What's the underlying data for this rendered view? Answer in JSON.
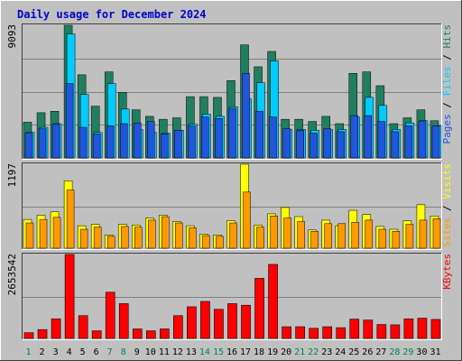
{
  "chart_data": {
    "type": "bar",
    "title": "Daily usage for December 2024",
    "categories": [
      "1",
      "2",
      "3",
      "4",
      "5",
      "6",
      "7",
      "8",
      "9",
      "10",
      "11",
      "12",
      "13",
      "14",
      "15",
      "16",
      "17",
      "18",
      "19",
      "20",
      "21",
      "22",
      "23",
      "24",
      "25",
      "26",
      "27",
      "28",
      "29",
      "30",
      "31"
    ],
    "weekend_days": [
      "1",
      "7",
      "8",
      "14",
      "15",
      "21",
      "22",
      "28",
      "29"
    ],
    "panels": [
      {
        "id": "hits_files_pages",
        "max_label": "9093",
        "ylim": [
          0,
          9093
        ],
        "legend": [
          "Pages",
          "Files",
          "Hits"
        ],
        "series": [
          {
            "name": "Hits",
            "color": "#1f7f60",
            "values": [
              2450,
              3100,
              3200,
              9093,
              5700,
              3550,
              5900,
              4500,
              3300,
              2850,
              2650,
              2750,
              4200,
              4200,
              4150,
              5300,
              7750,
              6250,
              7300,
              2650,
              2650,
              2500,
              2850,
              2350,
              5800,
              5900,
              4950,
              2350,
              2750,
              3300,
              2550
            ]
          },
          {
            "name": "Files",
            "color": "#00ccff",
            "values": [
              1750,
              2100,
              2350,
              8500,
              4350,
              1750,
              5100,
              3350,
              1950,
              1750,
              1700,
              1900,
              2300,
              3000,
              2850,
              3500,
              4050,
              5150,
              6650,
              1950,
              1950,
              1900,
              1950,
              1950,
              2800,
              4150,
              3600,
              1950,
              2400,
              2550,
              2200
            ]
          },
          {
            "name": "Pages",
            "color": "#2255dd",
            "values": [
              1700,
              2000,
              2300,
              5100,
              2100,
              1650,
              2200,
              2350,
              2400,
              2500,
              1650,
              1900,
              2200,
              2800,
              2700,
              3400,
              5800,
              3200,
              2800,
              2000,
              1900,
              1700,
              2000,
              1800,
              2900,
              2900,
              2500,
              1800,
              2200,
              2500,
              2200
            ]
          }
        ]
      },
      {
        "id": "visits_sites",
        "max_label": "1197",
        "ylim": [
          0,
          1197
        ],
        "legend": [
          "Sites",
          "Visits"
        ],
        "series": [
          {
            "name": "Visits",
            "color": "#ffff00",
            "values": [
              410,
              470,
              520,
              960,
              320,
              340,
              190,
              340,
              330,
              430,
              470,
              380,
              320,
              200,
              190,
              390,
              1197,
              330,
              490,
              580,
              450,
              260,
              400,
              320,
              540,
              480,
              310,
              270,
              390,
              620,
              460
            ]
          },
          {
            "name": "Sites",
            "color": "#ff9900",
            "values": [
              360,
              410,
              440,
              830,
              270,
              300,
              170,
              310,
              300,
              400,
              450,
              360,
              290,
              180,
              170,
              360,
              800,
              300,
              460,
              430,
              380,
              240,
              350,
              350,
              370,
              400,
              270,
              240,
              340,
              400,
              420
            ]
          }
        ]
      },
      {
        "id": "kbytes",
        "max_label": "2653542",
        "ylim": [
          0,
          2653542
        ],
        "legend": [
          "KBytes"
        ],
        "series": [
          {
            "name": "KBytes",
            "color": "#ff0000",
            "values": [
              180000,
              280000,
              620000,
              2653542,
              720000,
              240000,
              1460000,
              1100000,
              300000,
              240000,
              300000,
              720000,
              1000000,
              1170000,
              920000,
              1100000,
              1050000,
              1900000,
              2340000,
              370000,
              370000,
              320000,
              370000,
              340000,
              610000,
              580000,
              440000,
              430000,
              620000,
              640000,
              600000
            ]
          }
        ]
      }
    ]
  },
  "colors": {
    "background": "#c0c0c0",
    "title": "#0000cc",
    "weekend_label": "#00805a",
    "weekday_label": "#000000"
  }
}
